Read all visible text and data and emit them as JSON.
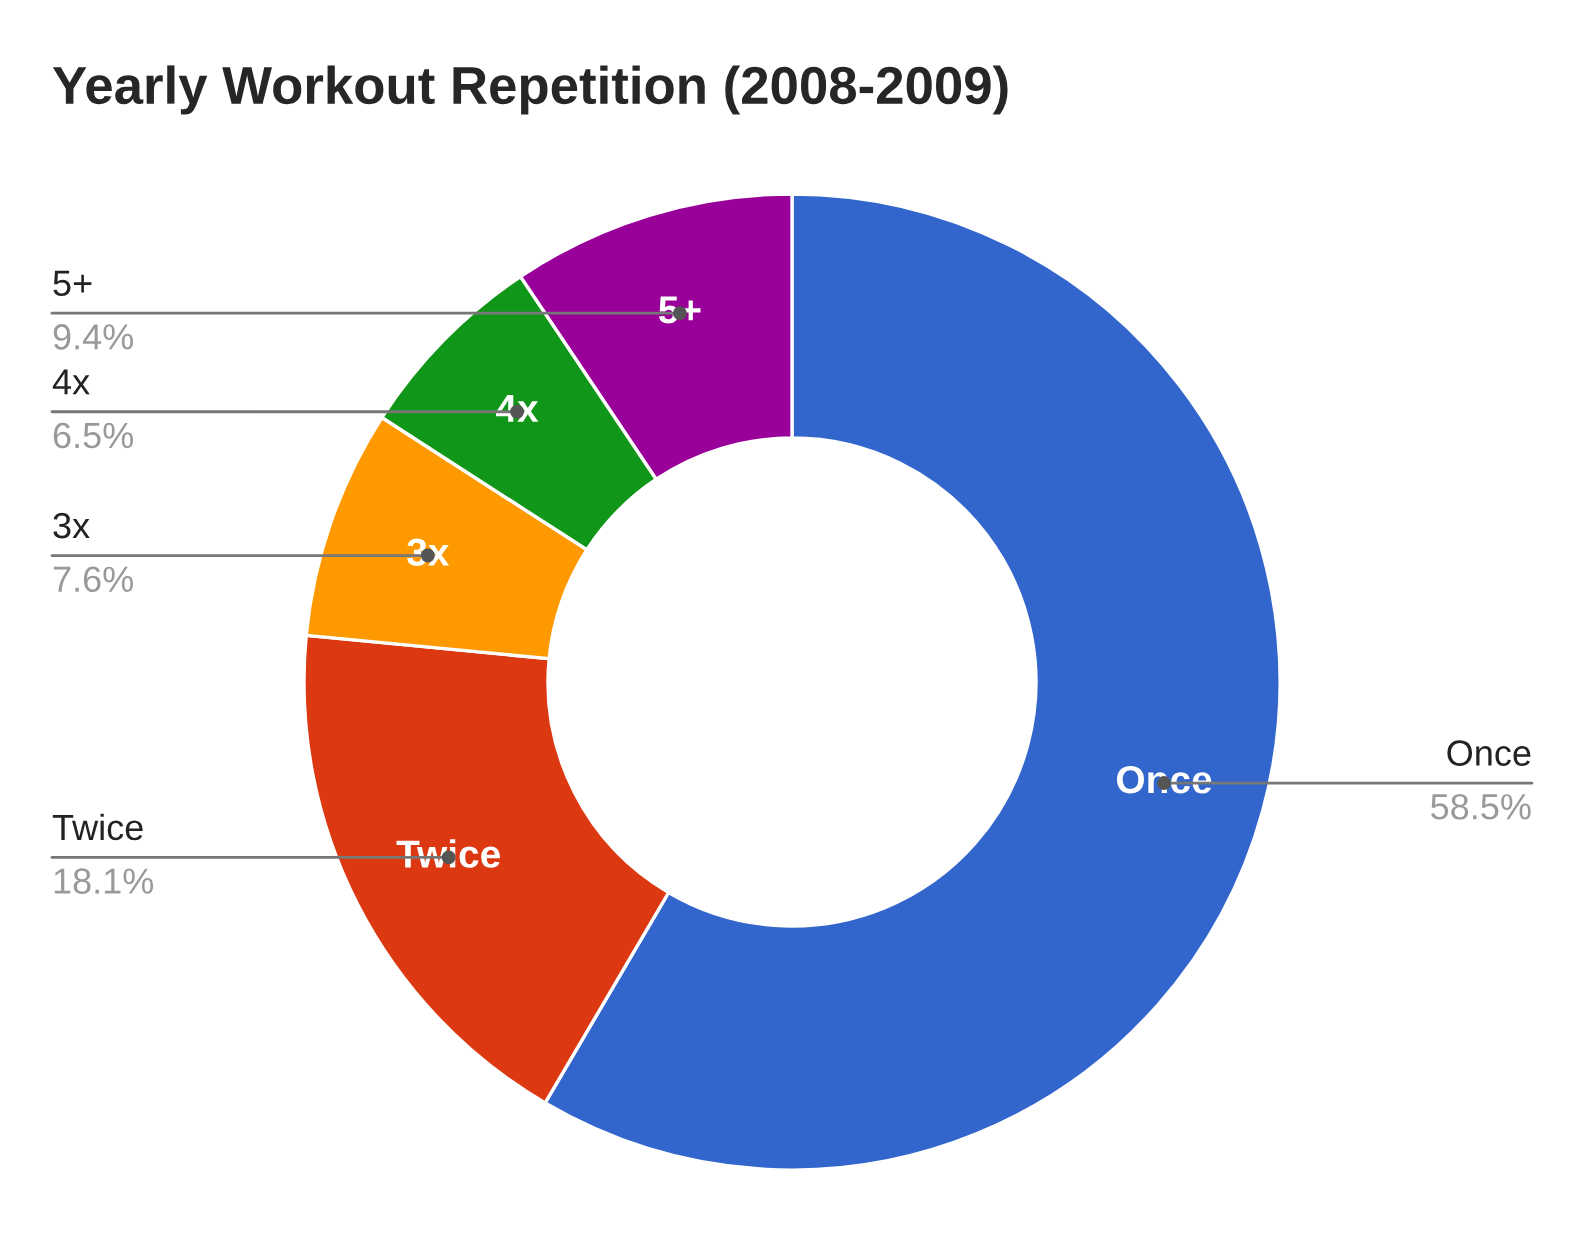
{
  "chart_data": {
    "type": "donut",
    "title": "Yearly Workout Repetition (2008-2009)",
    "categories": [
      "Once",
      "Twice",
      "3x",
      "4x",
      "5+"
    ],
    "values": [
      58.5,
      18.1,
      7.6,
      6.5,
      9.4
    ],
    "value_labels": [
      "58.5%",
      "18.1%",
      "7.6%",
      "6.5%",
      "9.4%"
    ],
    "colors": [
      "#3366cc",
      "#dc3912",
      "#ff9900",
      "#109618",
      "#990099"
    ],
    "legend": false
  }
}
